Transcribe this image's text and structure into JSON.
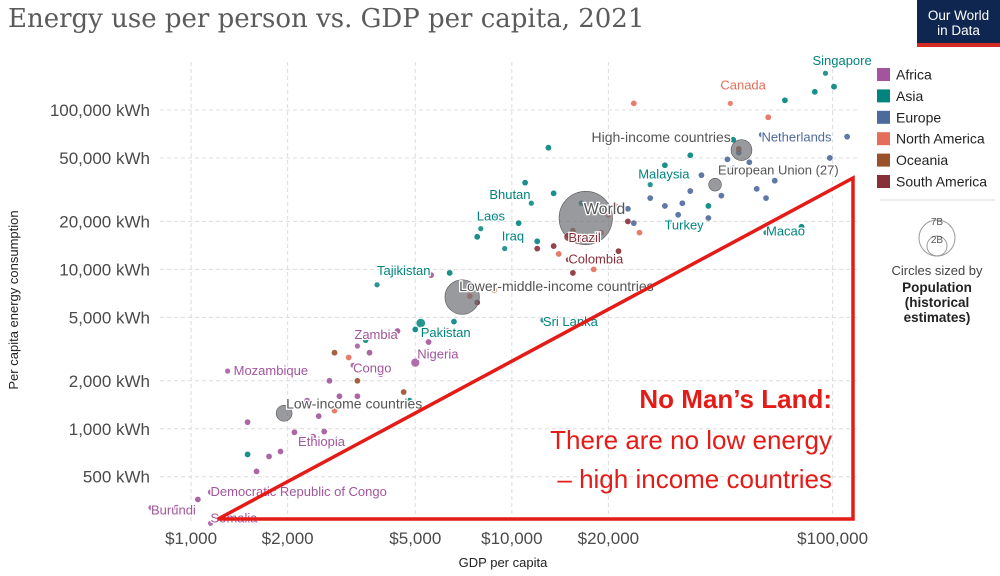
{
  "title": "Energy use per person vs. GDP per capita, 2021",
  "logo": {
    "line1": "Our World",
    "line2": "in Data"
  },
  "annotation": {
    "line1": "No Man’s Land:",
    "line2": "There are no low energy",
    "line3": "– high income countries"
  },
  "size_legend": {
    "big": "7B",
    "small": "2B",
    "line1": "Circles sized by",
    "line2": "Population",
    "line3": "(historical",
    "line4": "estimates)"
  },
  "chart_data": {
    "type": "scatter",
    "title": "Energy use per person vs. GDP per capita, 2021",
    "xlabel": "GDP per capita",
    "ylabel": "Per capita energy consumption",
    "x_scale": "log",
    "y_scale": "log",
    "xlim": [
      800,
      120000
    ],
    "ylim": [
      260,
      200000
    ],
    "x_ticks": [
      {
        "v": 1000,
        "label": "$1,000"
      },
      {
        "v": 2000,
        "label": "$2,000"
      },
      {
        "v": 5000,
        "label": "$5,000"
      },
      {
        "v": 10000,
        "label": "$10,000"
      },
      {
        "v": 20000,
        "label": "$20,000"
      },
      {
        "v": 100000,
        "label": "$100,000"
      }
    ],
    "y_ticks": [
      {
        "v": 500,
        "label": "500 kWh"
      },
      {
        "v": 1000,
        "label": "1,000 kWh"
      },
      {
        "v": 2000,
        "label": "2,000 kWh"
      },
      {
        "v": 5000,
        "label": "5,000 kWh"
      },
      {
        "v": 10000,
        "label": "10,000 kWh"
      },
      {
        "v": 20000,
        "label": "20,000 kWh"
      },
      {
        "v": 50000,
        "label": "50,000 kWh"
      },
      {
        "v": 100000,
        "label": "100,000 kWh"
      }
    ],
    "grid": true,
    "legend_position": "right",
    "series": [
      {
        "name": "Africa",
        "color": "#a2559c"
      },
      {
        "name": "Asia",
        "color": "#00847e"
      },
      {
        "name": "Europe",
        "color": "#4c6a9c"
      },
      {
        "name": "North America",
        "color": "#e56e5a"
      },
      {
        "name": "Oceania",
        "color": "#9a5129"
      },
      {
        "name": "South America",
        "color": "#883039"
      }
    ],
    "aggregates": [
      {
        "label": "World",
        "x": 17000,
        "y": 21000,
        "size": 7.9
      },
      {
        "label": "High-income countries",
        "x": 52000,
        "y": 56000,
        "size": 1.2
      },
      {
        "label": "European Union (27)",
        "x": 43000,
        "y": 34000,
        "size": 0.45
      },
      {
        "label": "Lower-middle-income countries",
        "x": 7000,
        "y": 6700,
        "size": 3.3
      },
      {
        "label": "Low-income countries",
        "x": 1950,
        "y": 1250,
        "size": 0.7
      }
    ],
    "points": [
      {
        "label": "Singapore",
        "x": 95000,
        "y": 170000,
        "region": "Asia",
        "size": 0.006
      },
      {
        "label": "Canada",
        "x": 48000,
        "y": 110000,
        "region": "North America",
        "size": 0.038
      },
      {
        "label": "Netherlands",
        "x": 60000,
        "y": 70000,
        "region": "Europe",
        "size": 0.018
      },
      {
        "label": "Malaysia",
        "x": 27000,
        "y": 34000,
        "region": "Asia",
        "size": 0.033
      },
      {
        "label": "Turkey",
        "x": 31000,
        "y": 20000,
        "region": "Asia",
        "size": 0.085
      },
      {
        "label": "Macao",
        "x": 62000,
        "y": 17000,
        "region": "Asia",
        "size": 0.0007
      },
      {
        "label": "Bhutan",
        "x": 11500,
        "y": 26000,
        "region": "Asia",
        "size": 0.0008
      },
      {
        "label": "Laos",
        "x": 8000,
        "y": 18000,
        "region": "Asia",
        "size": 0.007
      },
      {
        "label": "Iraq",
        "x": 9500,
        "y": 13500,
        "region": "Asia",
        "size": 0.043
      },
      {
        "label": "Brazil",
        "x": 15000,
        "y": 16000,
        "region": "South America",
        "size": 0.21
      },
      {
        "label": "Colombia",
        "x": 15000,
        "y": 11500,
        "region": "South America",
        "size": 0.051
      },
      {
        "label": "Tajikistan",
        "x": 3800,
        "y": 8000,
        "region": "Asia",
        "size": 0.01
      },
      {
        "label": "Pakistan",
        "x": 5200,
        "y": 4600,
        "region": "Asia",
        "size": 0.23
      },
      {
        "label": "Sri Lanka",
        "x": 12500,
        "y": 4800,
        "region": "Asia",
        "size": 0.022
      },
      {
        "label": "Zambia",
        "x": 3300,
        "y": 3300,
        "region": "Africa",
        "size": 0.019
      },
      {
        "label": "Mozambique",
        "x": 1300,
        "y": 2300,
        "region": "Africa",
        "size": 0.032
      },
      {
        "label": "Congo",
        "x": 3200,
        "y": 2500,
        "region": "Africa",
        "size": 0.006
      },
      {
        "label": "Nigeria",
        "x": 5000,
        "y": 2600,
        "region": "Africa",
        "size": 0.21
      },
      {
        "label": "Ethiopia",
        "x": 2400,
        "y": 890,
        "region": "Africa",
        "size": 0.12
      },
      {
        "label": "Democratic Republic of Congo",
        "x": 1150,
        "y": 400,
        "region": "Africa",
        "size": 0.095
      },
      {
        "label": "Burundi",
        "x": 750,
        "y": 320,
        "region": "Africa",
        "size": 0.012
      },
      {
        "label": "Somalia",
        "x": 1150,
        "y": 255,
        "region": "Africa",
        "size": 0.017
      }
    ],
    "unlabeled_points": [
      {
        "x": 88000,
        "y": 130000,
        "region": "Asia"
      },
      {
        "x": 71000,
        "y": 115000,
        "region": "Asia"
      },
      {
        "x": 101000,
        "y": 140000,
        "region": "Asia"
      },
      {
        "x": 111000,
        "y": 68000,
        "region": "Europe"
      },
      {
        "x": 98000,
        "y": 50000,
        "region": "Europe"
      },
      {
        "x": 82000,
        "y": 41000,
        "region": "Europe"
      },
      {
        "x": 66000,
        "y": 36000,
        "region": "Europe"
      },
      {
        "x": 55000,
        "y": 47000,
        "region": "Europe"
      },
      {
        "x": 49000,
        "y": 43000,
        "region": "Europe"
      },
      {
        "x": 45000,
        "y": 29000,
        "region": "Europe"
      },
      {
        "x": 39000,
        "y": 39000,
        "region": "Europe"
      },
      {
        "x": 36000,
        "y": 31000,
        "region": "Europe"
      },
      {
        "x": 34000,
        "y": 26000,
        "region": "Europe"
      },
      {
        "x": 41000,
        "y": 21000,
        "region": "Europe"
      },
      {
        "x": 33000,
        "y": 22000,
        "region": "Europe"
      },
      {
        "x": 30000,
        "y": 25000,
        "region": "Europe"
      },
      {
        "x": 24000,
        "y": 19500,
        "region": "Europe"
      },
      {
        "x": 27000,
        "y": 28000,
        "region": "Europe"
      },
      {
        "x": 23000,
        "y": 24000,
        "region": "Europe"
      },
      {
        "x": 58000,
        "y": 32000,
        "region": "Europe"
      },
      {
        "x": 62000,
        "y": 28000,
        "region": "Europe"
      },
      {
        "x": 47000,
        "y": 49000,
        "region": "Europe"
      },
      {
        "x": 51000,
        "y": 54000,
        "region": "Europe"
      },
      {
        "x": 63000,
        "y": 90000,
        "region": "North America"
      },
      {
        "x": 24000,
        "y": 110000,
        "region": "North America"
      },
      {
        "x": 20000,
        "y": 22000,
        "region": "North America"
      },
      {
        "x": 19000,
        "y": 17000,
        "region": "North America"
      },
      {
        "x": 16000,
        "y": 15000,
        "region": "North America"
      },
      {
        "x": 14000,
        "y": 12500,
        "region": "North America"
      },
      {
        "x": 21000,
        "y": 25000,
        "region": "North America"
      },
      {
        "x": 18000,
        "y": 10000,
        "region": "North America"
      },
      {
        "x": 25000,
        "y": 17000,
        "region": "North America"
      },
      {
        "x": 8800,
        "y": 7400,
        "region": "North America"
      },
      {
        "x": 7400,
        "y": 6800,
        "region": "North America"
      },
      {
        "x": 3100,
        "y": 2800,
        "region": "North America"
      },
      {
        "x": 2800,
        "y": 1300,
        "region": "North America"
      },
      {
        "x": 13000,
        "y": 58000,
        "region": "Asia"
      },
      {
        "x": 11000,
        "y": 35000,
        "region": "Asia"
      },
      {
        "x": 13500,
        "y": 30000,
        "region": "Asia"
      },
      {
        "x": 16500,
        "y": 26000,
        "region": "Asia"
      },
      {
        "x": 9000,
        "y": 21500,
        "region": "Asia"
      },
      {
        "x": 10500,
        "y": 19500,
        "region": "Asia"
      },
      {
        "x": 7800,
        "y": 16000,
        "region": "Asia"
      },
      {
        "x": 12000,
        "y": 15000,
        "region": "Asia"
      },
      {
        "x": 6400,
        "y": 9500,
        "region": "Asia"
      },
      {
        "x": 6600,
        "y": 4700,
        "region": "Asia"
      },
      {
        "x": 5000,
        "y": 4200,
        "region": "Asia"
      },
      {
        "x": 1500,
        "y": 690,
        "region": "Asia"
      },
      {
        "x": 4800,
        "y": 1500,
        "region": "Asia"
      },
      {
        "x": 3500,
        "y": 3600,
        "region": "Asia"
      },
      {
        "x": 41000,
        "y": 25000,
        "region": "Asia"
      },
      {
        "x": 36000,
        "y": 52000,
        "region": "Asia"
      },
      {
        "x": 30000,
        "y": 45000,
        "region": "Asia"
      },
      {
        "x": 80000,
        "y": 18500,
        "region": "Asia"
      },
      {
        "x": 49000,
        "y": 65000,
        "region": "Asia"
      },
      {
        "x": 4100,
        "y": 3800,
        "region": "Africa"
      },
      {
        "x": 4400,
        "y": 4100,
        "region": "Africa"
      },
      {
        "x": 3600,
        "y": 3000,
        "region": "Africa"
      },
      {
        "x": 2700,
        "y": 2000,
        "region": "Africa"
      },
      {
        "x": 2300,
        "y": 1500,
        "region": "Africa"
      },
      {
        "x": 2500,
        "y": 1200,
        "region": "Africa"
      },
      {
        "x": 2100,
        "y": 950,
        "region": "Africa"
      },
      {
        "x": 2200,
        "y": 870,
        "region": "Africa"
      },
      {
        "x": 1900,
        "y": 720,
        "region": "Africa"
      },
      {
        "x": 1500,
        "y": 1100,
        "region": "Africa"
      },
      {
        "x": 1750,
        "y": 670,
        "region": "Africa"
      },
      {
        "x": 1600,
        "y": 540,
        "region": "Africa"
      },
      {
        "x": 2900,
        "y": 1600,
        "region": "Africa"
      },
      {
        "x": 3300,
        "y": 1600,
        "region": "Africa"
      },
      {
        "x": 2600,
        "y": 960,
        "region": "Africa"
      },
      {
        "x": 6300,
        "y": 4100,
        "region": "Africa"
      },
      {
        "x": 5500,
        "y": 3500,
        "region": "Africa"
      },
      {
        "x": 3900,
        "y": 2200,
        "region": "Africa"
      },
      {
        "x": 900,
        "y": 320,
        "region": "Africa"
      },
      {
        "x": 1050,
        "y": 360,
        "region": "Africa"
      },
      {
        "x": 5600,
        "y": 9200,
        "region": "Africa"
      },
      {
        "x": 2800,
        "y": 3000,
        "region": "Oceania"
      },
      {
        "x": 3300,
        "y": 2000,
        "region": "Oceania"
      },
      {
        "x": 4600,
        "y": 1700,
        "region": "Oceania"
      },
      {
        "x": 51000,
        "y": 57000,
        "region": "Oceania"
      },
      {
        "x": 15500,
        "y": 17500,
        "region": "Oceania"
      },
      {
        "x": 12000,
        "y": 13500,
        "region": "South America"
      },
      {
        "x": 13500,
        "y": 14000,
        "region": "South America"
      },
      {
        "x": 21500,
        "y": 13000,
        "region": "South America"
      },
      {
        "x": 15500,
        "y": 9500,
        "region": "South America"
      },
      {
        "x": 23000,
        "y": 20000,
        "region": "South America"
      },
      {
        "x": 7800,
        "y": 6200,
        "region": "South America"
      }
    ]
  }
}
